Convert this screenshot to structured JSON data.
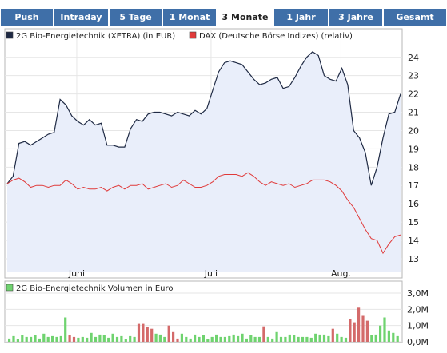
{
  "tabs": [
    {
      "label": "Push",
      "active": false
    },
    {
      "label": "Intraday",
      "active": false
    },
    {
      "label": "5 Tage",
      "active": false
    },
    {
      "label": "1 Monat",
      "active": false
    },
    {
      "label": "3 Monate",
      "active": true
    },
    {
      "label": "1 Jahr",
      "active": false
    },
    {
      "label": "3 Jahre",
      "active": false
    },
    {
      "label": "Gesamt",
      "active": false
    }
  ],
  "colors": {
    "tab_bg": "#3f6fa8",
    "series_line": "#1f2a44",
    "series_fill": "#e9eefa",
    "dax_line": "#e03a3a",
    "vol_up": "#6fd36f",
    "vol_down": "#d46a6a"
  },
  "chart_data": [
    {
      "type": "line",
      "legend": [
        {
          "name": "2G Bio-Energietechnik (XETRA) (in EUR)",
          "color": "#1f2a44"
        },
        {
          "name": "DAX (Deutsche Börse Indizes) (relativ)",
          "color": "#e03a3a"
        }
      ],
      "x_labels": [
        "Juni",
        "Juli",
        "Aug."
      ],
      "y_ticks": [
        13,
        14,
        15,
        16,
        17,
        18,
        19,
        20,
        21,
        22,
        23,
        24
      ],
      "ylim": [
        12.3,
        24.6
      ],
      "series": [
        {
          "name": "2G Bio-Energietechnik (XETRA) (in EUR)",
          "values": [
            17.1,
            17.5,
            19.3,
            19.4,
            19.2,
            19.4,
            19.6,
            19.8,
            19.9,
            21.7,
            21.4,
            20.8,
            20.5,
            20.3,
            20.6,
            20.3,
            20.4,
            19.2,
            19.2,
            19.1,
            19.1,
            20.1,
            20.6,
            20.5,
            20.9,
            21.0,
            21.0,
            20.9,
            20.8,
            21.0,
            20.9,
            20.8,
            21.1,
            20.9,
            21.2,
            22.2,
            23.2,
            23.7,
            23.8,
            23.7,
            23.6,
            23.2,
            22.8,
            22.5,
            22.6,
            22.8,
            22.9,
            22.3,
            22.4,
            22.9,
            23.5,
            24.0,
            24.3,
            24.1,
            23.0,
            22.8,
            22.7,
            23.4,
            22.5,
            20.0,
            19.6,
            18.8,
            17.0,
            18.0,
            19.6,
            20.9,
            21.0,
            22.0
          ]
        },
        {
          "name": "DAX (Deutsche Börse Indizes) (relativ)",
          "values": [
            17.1,
            17.3,
            17.4,
            17.2,
            16.9,
            17.0,
            17.0,
            16.9,
            17.0,
            17.0,
            17.3,
            17.1,
            16.8,
            16.9,
            16.8,
            16.8,
            16.9,
            16.7,
            16.9,
            17.0,
            16.8,
            17.0,
            17.0,
            17.1,
            16.8,
            16.9,
            17.0,
            17.1,
            16.9,
            17.0,
            17.3,
            17.1,
            16.9,
            16.9,
            17.0,
            17.2,
            17.5,
            17.6,
            17.6,
            17.6,
            17.5,
            17.7,
            17.5,
            17.2,
            17.0,
            17.2,
            17.1,
            17.0,
            17.1,
            16.9,
            17.0,
            17.1,
            17.3,
            17.3,
            17.3,
            17.2,
            17.0,
            16.7,
            16.2,
            15.8,
            15.2,
            14.6,
            14.1,
            14.0,
            13.3,
            13.8,
            14.2,
            14.3
          ]
        }
      ]
    },
    {
      "type": "bar",
      "legend": [
        {
          "name": "2G Bio-Energietechnik Volumen in Euro",
          "color": "#6fd36f"
        }
      ],
      "y_ticks": [
        "0,0M",
        "1,0M",
        "2,0M",
        "3,0M"
      ],
      "ylim": [
        0,
        3
      ],
      "values": [
        0.2,
        0.35,
        0.15,
        0.4,
        0.3,
        0.3,
        0.4,
        0.2,
        0.5,
        0.3,
        0.35,
        0.3,
        0.35,
        1.5,
        0.4,
        0.3,
        0.25,
        0.3,
        0.25,
        0.55,
        0.3,
        0.45,
        0.4,
        0.25,
        0.5,
        0.3,
        0.35,
        0.15,
        0.35,
        0.3,
        1.1,
        1.1,
        0.9,
        0.8,
        0.5,
        0.45,
        0.3,
        1.0,
        0.6,
        0.2,
        0.5,
        0.3,
        0.2,
        0.45,
        0.3,
        0.4,
        0.15,
        0.3,
        0.45,
        0.3,
        0.3,
        0.35,
        0.45,
        0.35,
        0.5,
        0.2,
        0.4,
        0.3,
        0.3,
        0.95,
        0.3,
        0.2,
        0.6,
        0.3,
        0.3,
        0.45,
        0.4,
        0.3,
        0.3,
        0.3,
        0.25,
        0.5,
        0.45,
        0.45,
        0.35,
        0.8,
        0.5,
        0.3,
        0.25,
        1.4,
        1.2,
        2.1,
        1.6,
        1.3,
        0.4,
        0.45,
        1.0,
        1.5,
        0.7,
        0.55,
        0.35
      ],
      "down": [
        false,
        false,
        false,
        false,
        false,
        false,
        false,
        false,
        false,
        false,
        false,
        false,
        false,
        false,
        true,
        true,
        false,
        false,
        false,
        false,
        false,
        false,
        false,
        false,
        false,
        false,
        false,
        false,
        false,
        false,
        true,
        true,
        true,
        true,
        false,
        false,
        false,
        true,
        true,
        true,
        false,
        false,
        false,
        false,
        false,
        false,
        false,
        false,
        false,
        false,
        false,
        false,
        false,
        false,
        false,
        false,
        false,
        false,
        false,
        true,
        false,
        false,
        false,
        false,
        false,
        false,
        false,
        false,
        false,
        false,
        false,
        false,
        false,
        false,
        false,
        true,
        false,
        false,
        false,
        true,
        true,
        true,
        true,
        true,
        false,
        false,
        false,
        false,
        false,
        false,
        false
      ]
    }
  ]
}
